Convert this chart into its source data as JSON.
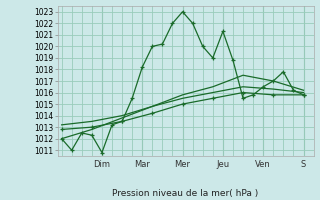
{
  "xlabel": "Pression niveau de la mer( hPa )",
  "ylim": [
    1010.5,
    1023.5
  ],
  "yticks": [
    1011,
    1012,
    1013,
    1014,
    1015,
    1016,
    1017,
    1018,
    1019,
    1020,
    1021,
    1022,
    1023
  ],
  "day_labels": [
    "Dim",
    "Mar",
    "Mer",
    "Jeu",
    "Ven",
    "S"
  ],
  "day_positions": [
    2.0,
    4.0,
    6.0,
    8.0,
    10.0,
    12.0
  ],
  "xlim": [
    -0.2,
    12.5
  ],
  "bg_color": "#cce8e8",
  "grid_color": "#99ccbb",
  "line_color": "#1a6b2a",
  "series1_x": [
    0,
    0.5,
    1.0,
    1.5,
    2.0,
    2.5,
    3.0,
    3.5,
    4.0,
    4.5,
    5.0,
    5.5,
    6.0,
    6.5,
    7.0,
    7.5,
    8.0,
    8.5,
    9.0,
    9.5,
    10.0,
    10.5,
    11.0,
    11.5,
    12.0
  ],
  "series1_y": [
    1012.0,
    1011.0,
    1012.5,
    1012.3,
    1010.8,
    1013.2,
    1013.5,
    1015.5,
    1018.2,
    1020.0,
    1020.2,
    1022.0,
    1023.0,
    1022.0,
    1020.0,
    1019.0,
    1021.3,
    1018.8,
    1015.5,
    1015.8,
    1016.5,
    1017.0,
    1017.8,
    1016.2,
    1015.8
  ],
  "series2_x": [
    0,
    1.5,
    3.0,
    4.5,
    6.0,
    7.5,
    9.0,
    10.5,
    12.0
  ],
  "series2_y": [
    1012.8,
    1013.0,
    1013.5,
    1014.2,
    1015.0,
    1015.5,
    1016.0,
    1015.8,
    1015.8
  ],
  "series3_x": [
    0,
    1.5,
    3.0,
    4.5,
    6.0,
    7.5,
    9.0,
    10.5,
    12.0
  ],
  "series3_y": [
    1013.2,
    1013.5,
    1014.0,
    1014.8,
    1015.5,
    1016.0,
    1016.5,
    1016.3,
    1016.0
  ],
  "series4_x": [
    0,
    1.5,
    3.0,
    4.5,
    6.0,
    7.5,
    9.0,
    10.5,
    12.0
  ],
  "series4_y": [
    1012.0,
    1012.8,
    1013.8,
    1014.8,
    1015.8,
    1016.5,
    1017.5,
    1017.0,
    1016.2
  ]
}
